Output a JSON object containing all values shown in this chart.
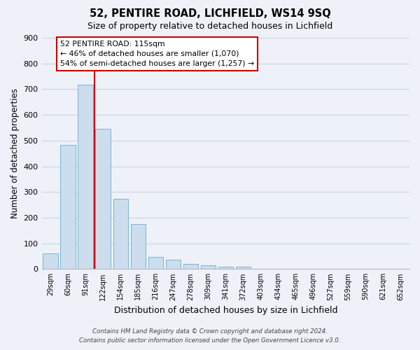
{
  "title": "52, PENTIRE ROAD, LICHFIELD, WS14 9SQ",
  "subtitle": "Size of property relative to detached houses in Lichfield",
  "xlabel": "Distribution of detached houses by size in Lichfield",
  "ylabel": "Number of detached properties",
  "categories": [
    "29sqm",
    "60sqm",
    "91sqm",
    "122sqm",
    "154sqm",
    "185sqm",
    "216sqm",
    "247sqm",
    "278sqm",
    "309sqm",
    "341sqm",
    "372sqm",
    "403sqm",
    "434sqm",
    "465sqm",
    "496sqm",
    "527sqm",
    "559sqm",
    "590sqm",
    "621sqm",
    "652sqm"
  ],
  "bar_values": [
    62,
    483,
    718,
    545,
    272,
    176,
    48,
    36,
    20,
    15,
    8,
    8,
    0,
    0,
    0,
    0,
    0,
    0,
    0,
    0,
    0
  ],
  "bar_color": "#ccdded",
  "bar_edge_color": "#7ab4d4",
  "grid_color": "#c8d4e4",
  "background_color": "#eef2f8",
  "vline_color": "#cc0000",
  "ylim": [
    0,
    900
  ],
  "yticks": [
    0,
    100,
    200,
    300,
    400,
    500,
    600,
    700,
    800,
    900
  ],
  "annotation_title": "52 PENTIRE ROAD: 115sqm",
  "annotation_line1": "← 46% of detached houses are smaller (1,070)",
  "annotation_line2": "54% of semi-detached houses are larger (1,257) →",
  "footer_line1": "Contains HM Land Registry data © Crown copyright and database right 2024.",
  "footer_line2": "Contains public sector information licensed under the Open Government Licence v3.0."
}
